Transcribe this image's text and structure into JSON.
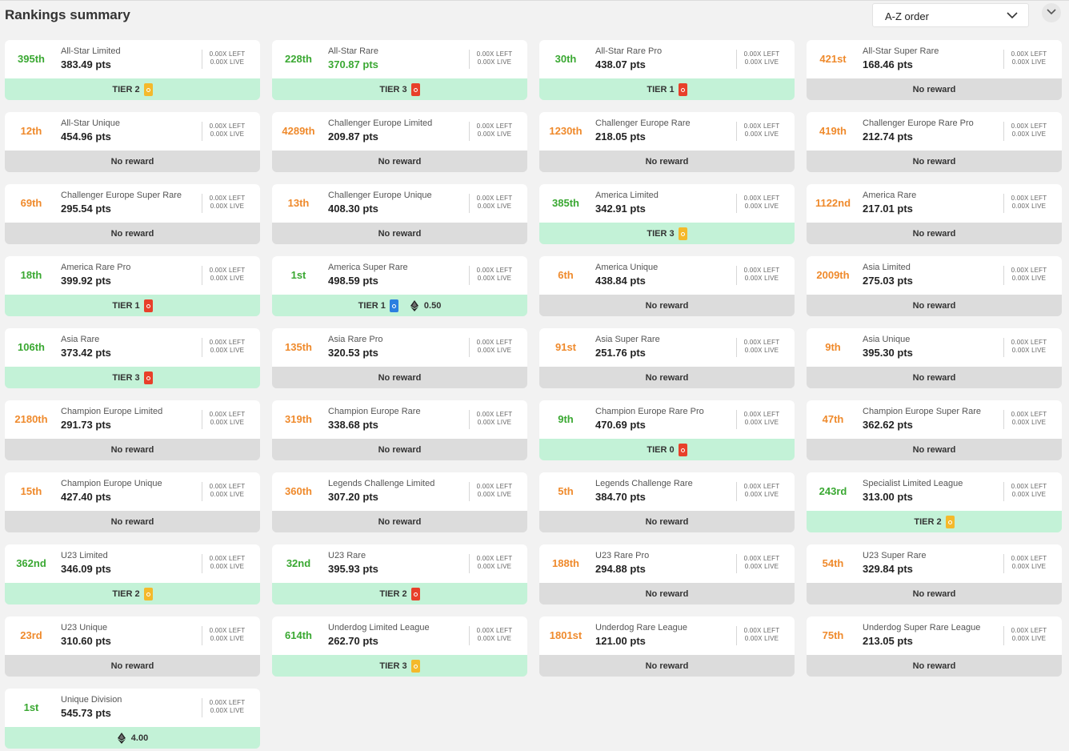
{
  "header": {
    "title": "Rankings summary",
    "sort": {
      "selected": "A-Z order"
    }
  },
  "colors": {
    "rank_green": "#3aa832",
    "rank_orange": "#ef8a2c",
    "reward_bg": "#c3f2d7",
    "no_reward_bg": "#dcdcdc",
    "limited_badge": "#f4b92b",
    "rare_badge": "#e8402a",
    "super_rare_badge": "#2b7fe0"
  },
  "cards": [
    {
      "rank": "395th",
      "rank_color": "green",
      "name": "All-Star Limited",
      "pts": "383.49 pts",
      "pts_color": "dark",
      "left": "0.00X LEFT",
      "live": "0.00X LIVE",
      "reward": {
        "type": "tier",
        "label": "TIER 2",
        "badge": "limited"
      }
    },
    {
      "rank": "228th",
      "rank_color": "green",
      "name": "All-Star Rare",
      "pts": "370.87 pts",
      "pts_color": "green",
      "left": "0.00X LEFT",
      "live": "0.00X LIVE",
      "reward": {
        "type": "tier",
        "label": "TIER 3",
        "badge": "rare"
      }
    },
    {
      "rank": "30th",
      "rank_color": "green",
      "name": "All-Star Rare Pro",
      "pts": "438.07 pts",
      "pts_color": "dark",
      "left": "0.00X LEFT",
      "live": "0.00X LIVE",
      "reward": {
        "type": "tier",
        "label": "TIER 1",
        "badge": "rare"
      }
    },
    {
      "rank": "421st",
      "rank_color": "orange",
      "name": "All-Star Super Rare",
      "pts": "168.46 pts",
      "pts_color": "dark",
      "left": "0.00X LEFT",
      "live": "0.00X LIVE",
      "reward": {
        "type": "none",
        "label": "No reward"
      }
    },
    {
      "rank": "12th",
      "rank_color": "orange",
      "name": "All-Star Unique",
      "pts": "454.96 pts",
      "pts_color": "dark",
      "left": "0.00X LEFT",
      "live": "0.00X LIVE",
      "reward": {
        "type": "none",
        "label": "No reward"
      }
    },
    {
      "rank": "4289th",
      "rank_color": "orange",
      "name": "Challenger Europe Limited",
      "pts": "209.87 pts",
      "pts_color": "dark",
      "left": "0.00X LEFT",
      "live": "0.00X LIVE",
      "reward": {
        "type": "none",
        "label": "No reward"
      }
    },
    {
      "rank": "1230th",
      "rank_color": "orange",
      "name": "Challenger Europe Rare",
      "pts": "218.05 pts",
      "pts_color": "dark",
      "left": "0.00X LEFT",
      "live": "0.00X LIVE",
      "reward": {
        "type": "none",
        "label": "No reward"
      }
    },
    {
      "rank": "419th",
      "rank_color": "orange",
      "name": "Challenger Europe Rare Pro",
      "pts": "212.74 pts",
      "pts_color": "dark",
      "left": "0.00X LEFT",
      "live": "0.00X LIVE",
      "reward": {
        "type": "none",
        "label": "No reward"
      }
    },
    {
      "rank": "69th",
      "rank_color": "orange",
      "name": "Challenger Europe Super Rare",
      "pts": "295.54 pts",
      "pts_color": "dark",
      "left": "0.00X LEFT",
      "live": "0.00X LIVE",
      "reward": {
        "type": "none",
        "label": "No reward"
      }
    },
    {
      "rank": "13th",
      "rank_color": "orange",
      "name": "Challenger Europe Unique",
      "pts": "408.30 pts",
      "pts_color": "dark",
      "left": "0.00X LEFT",
      "live": "0.00X LIVE",
      "reward": {
        "type": "none",
        "label": "No reward"
      }
    },
    {
      "rank": "385th",
      "rank_color": "green",
      "name": "America Limited",
      "pts": "342.91 pts",
      "pts_color": "dark",
      "left": "0.00X LEFT",
      "live": "0.00X LIVE",
      "reward": {
        "type": "tier",
        "label": "TIER 3",
        "badge": "limited"
      }
    },
    {
      "rank": "1122nd",
      "rank_color": "orange",
      "name": "America Rare",
      "pts": "217.01 pts",
      "pts_color": "dark",
      "left": "0.00X LEFT",
      "live": "0.00X LIVE",
      "reward": {
        "type": "none",
        "label": "No reward"
      }
    },
    {
      "rank": "18th",
      "rank_color": "green",
      "name": "America Rare Pro",
      "pts": "399.92 pts",
      "pts_color": "dark",
      "left": "0.00X LEFT",
      "live": "0.00X LIVE",
      "reward": {
        "type": "tier",
        "label": "TIER 1",
        "badge": "rare"
      }
    },
    {
      "rank": "1st",
      "rank_color": "green",
      "name": "America Super Rare",
      "pts": "498.59 pts",
      "pts_color": "dark",
      "left": "0.00X LEFT",
      "live": "0.00X LIVE",
      "reward": {
        "type": "tier",
        "label": "TIER 1",
        "badge": "superrare",
        "eth": "0.50"
      }
    },
    {
      "rank": "6th",
      "rank_color": "orange",
      "name": "America Unique",
      "pts": "438.84 pts",
      "pts_color": "dark",
      "left": "0.00X LEFT",
      "live": "0.00X LIVE",
      "reward": {
        "type": "none",
        "label": "No reward"
      }
    },
    {
      "rank": "2009th",
      "rank_color": "orange",
      "name": "Asia Limited",
      "pts": "275.03 pts",
      "pts_color": "dark",
      "left": "0.00X LEFT",
      "live": "0.00X LIVE",
      "reward": {
        "type": "none",
        "label": "No reward"
      }
    },
    {
      "rank": "106th",
      "rank_color": "green",
      "name": "Asia Rare",
      "pts": "373.42 pts",
      "pts_color": "dark",
      "left": "0.00X LEFT",
      "live": "0.00X LIVE",
      "reward": {
        "type": "tier",
        "label": "TIER 3",
        "badge": "rare"
      }
    },
    {
      "rank": "135th",
      "rank_color": "orange",
      "name": "Asia Rare Pro",
      "pts": "320.53 pts",
      "pts_color": "dark",
      "left": "0.00X LEFT",
      "live": "0.00X LIVE",
      "reward": {
        "type": "none",
        "label": "No reward"
      }
    },
    {
      "rank": "91st",
      "rank_color": "orange",
      "name": "Asia Super Rare",
      "pts": "251.76 pts",
      "pts_color": "dark",
      "left": "0.00X LEFT",
      "live": "0.00X LIVE",
      "reward": {
        "type": "none",
        "label": "No reward"
      }
    },
    {
      "rank": "9th",
      "rank_color": "orange",
      "name": "Asia Unique",
      "pts": "395.30 pts",
      "pts_color": "dark",
      "left": "0.00X LEFT",
      "live": "0.00X LIVE",
      "reward": {
        "type": "none",
        "label": "No reward"
      }
    },
    {
      "rank": "2180th",
      "rank_color": "orange",
      "name": "Champion Europe Limited",
      "pts": "291.73 pts",
      "pts_color": "dark",
      "left": "0.00X LEFT",
      "live": "0.00X LIVE",
      "reward": {
        "type": "none",
        "label": "No reward"
      }
    },
    {
      "rank": "319th",
      "rank_color": "orange",
      "name": "Champion Europe Rare",
      "pts": "338.68 pts",
      "pts_color": "dark",
      "left": "0.00X LEFT",
      "live": "0.00X LIVE",
      "reward": {
        "type": "none",
        "label": "No reward"
      }
    },
    {
      "rank": "9th",
      "rank_color": "green",
      "name": "Champion Europe Rare Pro",
      "pts": "470.69 pts",
      "pts_color": "dark",
      "left": "0.00X LEFT",
      "live": "0.00X LIVE",
      "reward": {
        "type": "tier",
        "label": "TIER 0",
        "badge": "rare"
      }
    },
    {
      "rank": "47th",
      "rank_color": "orange",
      "name": "Champion Europe Super Rare",
      "pts": "362.62 pts",
      "pts_color": "dark",
      "left": "0.00X LEFT",
      "live": "0.00X LIVE",
      "reward": {
        "type": "none",
        "label": "No reward"
      }
    },
    {
      "rank": "15th",
      "rank_color": "orange",
      "name": "Champion Europe Unique",
      "pts": "427.40 pts",
      "pts_color": "dark",
      "left": "0.00X LEFT",
      "live": "0.00X LIVE",
      "reward": {
        "type": "none",
        "label": "No reward"
      }
    },
    {
      "rank": "360th",
      "rank_color": "orange",
      "name": "Legends Challenge Limited",
      "pts": "307.20 pts",
      "pts_color": "dark",
      "left": "0.00X LEFT",
      "live": "0.00X LIVE",
      "reward": {
        "type": "none",
        "label": "No reward"
      }
    },
    {
      "rank": "5th",
      "rank_color": "orange",
      "name": "Legends Challenge Rare",
      "pts": "384.70 pts",
      "pts_color": "dark",
      "left": "0.00X LEFT",
      "live": "0.00X LIVE",
      "reward": {
        "type": "none",
        "label": "No reward"
      }
    },
    {
      "rank": "243rd",
      "rank_color": "green",
      "name": "Specialist Limited League",
      "pts": "313.00 pts",
      "pts_color": "dark",
      "left": "0.00X LEFT",
      "live": "0.00X LIVE",
      "reward": {
        "type": "tier",
        "label": "TIER 2",
        "badge": "limited"
      }
    },
    {
      "rank": "362nd",
      "rank_color": "green",
      "name": "U23 Limited",
      "pts": "346.09 pts",
      "pts_color": "dark",
      "left": "0.00X LEFT",
      "live": "0.00X LIVE",
      "reward": {
        "type": "tier",
        "label": "TIER 2",
        "badge": "limited"
      }
    },
    {
      "rank": "32nd",
      "rank_color": "green",
      "name": "U23 Rare",
      "pts": "395.93 pts",
      "pts_color": "dark",
      "left": "0.00X LEFT",
      "live": "0.00X LIVE",
      "reward": {
        "type": "tier",
        "label": "TIER 2",
        "badge": "rare"
      }
    },
    {
      "rank": "188th",
      "rank_color": "orange",
      "name": "U23 Rare Pro",
      "pts": "294.88 pts",
      "pts_color": "dark",
      "left": "0.00X LEFT",
      "live": "0.00X LIVE",
      "reward": {
        "type": "none",
        "label": "No reward"
      }
    },
    {
      "rank": "54th",
      "rank_color": "orange",
      "name": "U23 Super Rare",
      "pts": "329.84 pts",
      "pts_color": "dark",
      "left": "0.00X LEFT",
      "live": "0.00X LIVE",
      "reward": {
        "type": "none",
        "label": "No reward"
      }
    },
    {
      "rank": "23rd",
      "rank_color": "orange",
      "name": "U23 Unique",
      "pts": "310.60 pts",
      "pts_color": "dark",
      "left": "0.00X LEFT",
      "live": "0.00X LIVE",
      "reward": {
        "type": "none",
        "label": "No reward"
      }
    },
    {
      "rank": "614th",
      "rank_color": "green",
      "name": "Underdog Limited League",
      "pts": "262.70 pts",
      "pts_color": "dark",
      "left": "0.00X LEFT",
      "live": "0.00X LIVE",
      "reward": {
        "type": "tier",
        "label": "TIER 3",
        "badge": "limited"
      }
    },
    {
      "rank": "1801st",
      "rank_color": "orange",
      "name": "Underdog Rare League",
      "pts": "121.00 pts",
      "pts_color": "dark",
      "left": "0.00X LEFT",
      "live": "0.00X LIVE",
      "reward": {
        "type": "none",
        "label": "No reward"
      }
    },
    {
      "rank": "75th",
      "rank_color": "orange",
      "name": "Underdog Super Rare League",
      "pts": "213.05 pts",
      "pts_color": "dark",
      "left": "0.00X LEFT",
      "live": "0.00X LIVE",
      "reward": {
        "type": "none",
        "label": "No reward"
      }
    },
    {
      "rank": "1st",
      "rank_color": "green",
      "name": "Unique Division",
      "pts": "545.73 pts",
      "pts_color": "dark",
      "left": "0.00X LEFT",
      "live": "0.00X LIVE",
      "reward": {
        "type": "eth",
        "eth": "4.00"
      }
    }
  ]
}
